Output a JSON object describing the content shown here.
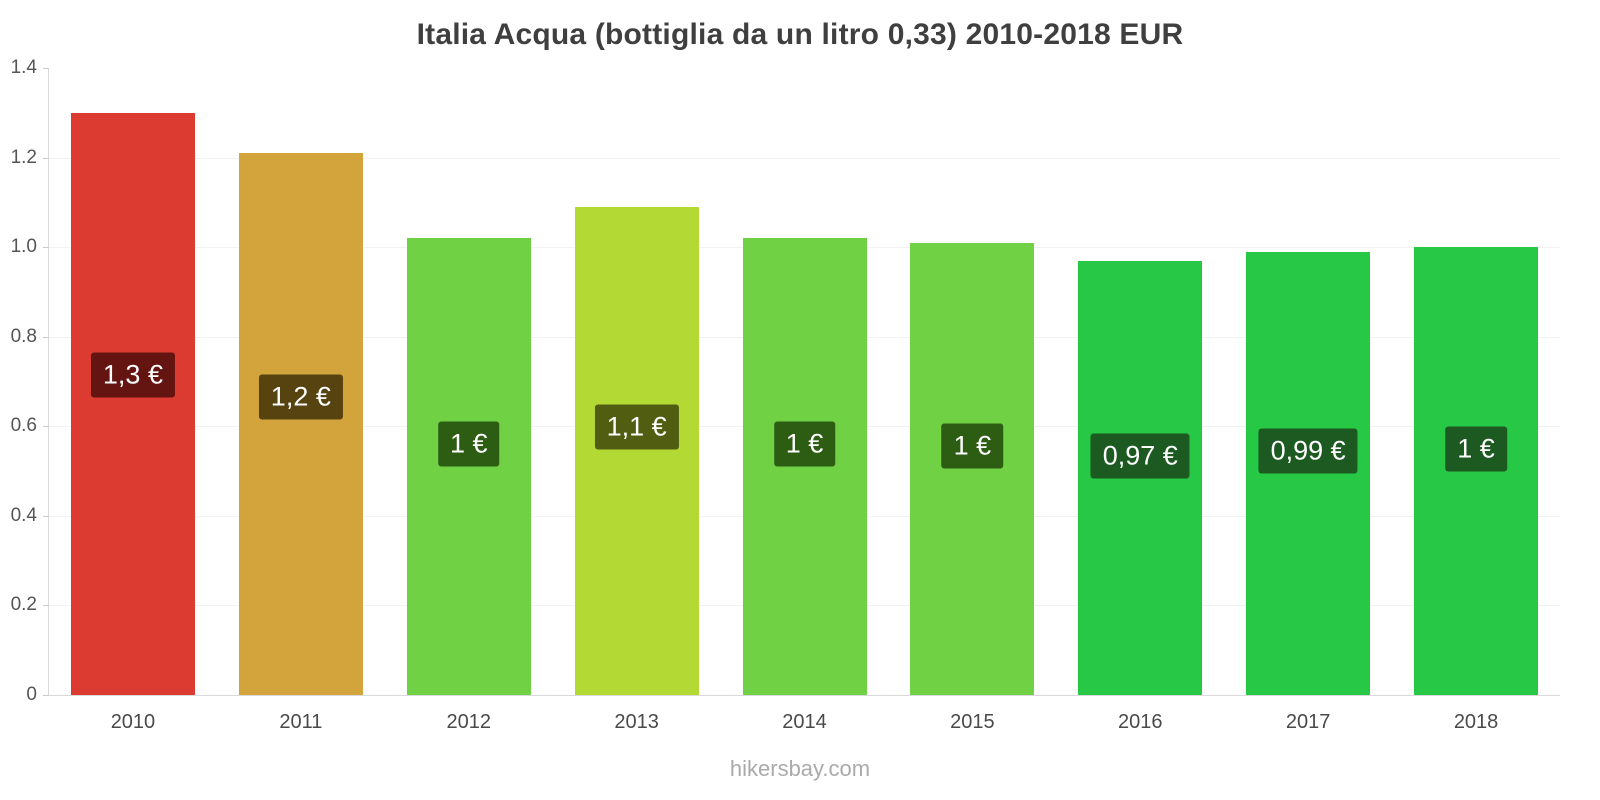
{
  "footer": {
    "text": "hikersbay.com"
  },
  "chart_data": {
    "type": "bar",
    "title": "Italia Acqua (bottiglia da un litro 0,33) 2010-2018 EUR",
    "xlabel": "",
    "ylabel": "",
    "ylim": [
      0,
      1.4
    ],
    "grid": true,
    "legend": "none",
    "categories": [
      "2010",
      "2011",
      "2012",
      "2013",
      "2014",
      "2015",
      "2016",
      "2017",
      "2018"
    ],
    "values": [
      1.3,
      1.21,
      1.02,
      1.09,
      1.02,
      1.01,
      0.97,
      0.99,
      1.0
    ],
    "value_labels": [
      "1,3 €",
      "1,2 €",
      "1 €",
      "1,1 €",
      "1 €",
      "1 €",
      "0,97 €",
      "0,99 €",
      "1 €"
    ],
    "bar_colors": [
      "#dc3b32",
      "#d2a43b",
      "#6fd143",
      "#b3d935",
      "#6fd143",
      "#6fd143",
      "#27c845",
      "#27c845",
      "#27c845"
    ],
    "label_bg_colors": [
      "#641511",
      "#57430f",
      "#2c5d13",
      "#515d11",
      "#2c5d13",
      "#2c5d13",
      "#1c5a22",
      "#1c5a22",
      "#1c5a22"
    ],
    "yticks": [
      "1.4",
      "1.2",
      "1.0",
      "0.8",
      "0.6",
      "0.4",
      "0.2",
      "0"
    ]
  }
}
